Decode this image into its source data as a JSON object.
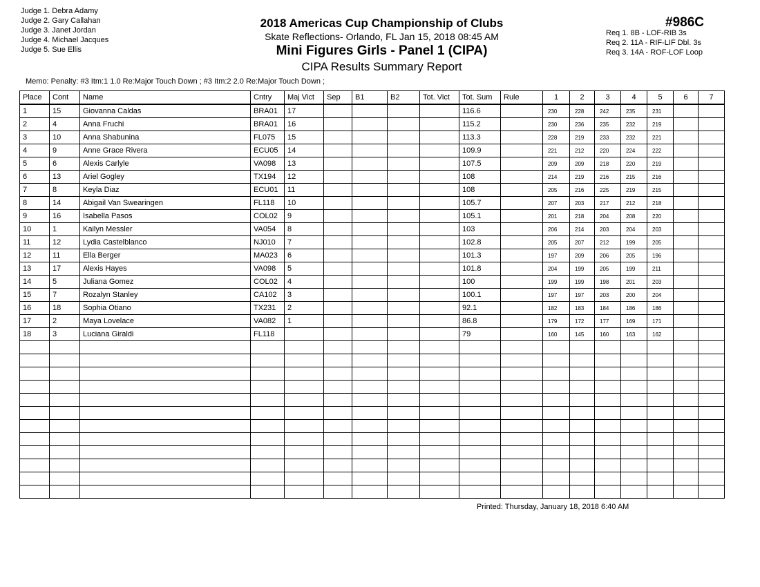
{
  "judges": [
    "Judge  1.  Debra Adamy",
    "Judge  2.  Gary Callahan",
    "Judge  3.  Janet Jordan",
    "Judge  4.  Michael Jacques",
    "Judge  5.  Sue Ellis"
  ],
  "event_code": "#986C",
  "requirements": [
    "Req  1.  8B - LOF-RIB 3s",
    "Req  2.  11A - RIF-LIF Dbl. 3s",
    "Req  3.  14A - ROF-LOF Loop"
  ],
  "title": "2018 Americas Cup Championship of Clubs",
  "venue": "Skate Reflections- Orlando, FL  Jan 15, 2018  08:45 AM",
  "event": "Mini Figures Girls - Panel 1 (CIPA)",
  "report": "CIPA Results Summary Report",
  "memo": "Memo: Penalty: #3 Itm:1 1.0 Re:Major Touch Down ; #3 Itm:2 2.0 Re:Major Touch Down ;",
  "columns": [
    "Place",
    "Cont",
    "Name",
    "Cntry",
    "Maj Vict",
    "Sep",
    "B1",
    "B2",
    "Tot. Vict",
    "Tot. Sum",
    "Rule",
    "1",
    "2",
    "3",
    "4",
    "5",
    "6",
    "7"
  ],
  "rows": [
    [
      "1",
      "15",
      "Giovanna Caldas",
      "BRA01",
      "17",
      "116.6",
      [
        "230",
        "228",
        "242",
        "235",
        "231"
      ]
    ],
    [
      "2",
      "4",
      "Anna Fruchi",
      "BRA01",
      "16",
      "115.2",
      [
        "230",
        "236",
        "235",
        "232",
        "219"
      ]
    ],
    [
      "3",
      "10",
      "Anna Shabunina",
      "FL075",
      "15",
      "113.3",
      [
        "228",
        "219",
        "233",
        "232",
        "221"
      ]
    ],
    [
      "4",
      "9",
      "Anne Grace Rivera",
      "ECU05",
      "14",
      "109.9",
      [
        "221",
        "212",
        "220",
        "224",
        "222"
      ]
    ],
    [
      "5",
      "6",
      "Alexis Carlyle",
      "VA098",
      "13",
      "107.5",
      [
        "209",
        "209",
        "218",
        "220",
        "219"
      ]
    ],
    [
      "6",
      "13",
      "Ariel Gogley",
      "TX194",
      "12",
      "108",
      [
        "214",
        "219",
        "216",
        "215",
        "216"
      ]
    ],
    [
      "7",
      "8",
      "Keyla Diaz",
      "ECU01",
      "11",
      "108",
      [
        "205",
        "216",
        "225",
        "219",
        "215"
      ]
    ],
    [
      "8",
      "14",
      "Abigail Van Swearingen",
      "FL118",
      "10",
      "105.7",
      [
        "207",
        "203",
        "217",
        "212",
        "218"
      ]
    ],
    [
      "9",
      "16",
      "Isabella Pasos",
      "COL02",
      "9",
      "105.1",
      [
        "201",
        "218",
        "204",
        "208",
        "220"
      ]
    ],
    [
      "10",
      "1",
      "Kailyn Messler",
      "VA054",
      "8",
      "103",
      [
        "206",
        "214",
        "203",
        "204",
        "203"
      ]
    ],
    [
      "11",
      "12",
      "Lydia Castelblanco",
      "NJ010",
      "7",
      "102.8",
      [
        "205",
        "207",
        "212",
        "199",
        "205"
      ]
    ],
    [
      "12",
      "11",
      "Ella Berger",
      "MA023",
      "6",
      "101.3",
      [
        "197",
        "209",
        "206",
        "205",
        "196"
      ]
    ],
    [
      "13",
      "17",
      "Alexis Hayes",
      "VA098",
      "5",
      "101.8",
      [
        "204",
        "199",
        "205",
        "199",
        "211"
      ]
    ],
    [
      "14",
      "5",
      "Juliana Gomez",
      "COL02",
      "4",
      "100",
      [
        "199",
        "199",
        "198",
        "201",
        "203"
      ]
    ],
    [
      "15",
      "7",
      "Rozalyn Stanley",
      "CA102",
      "3",
      "100.1",
      [
        "197",
        "197",
        "203",
        "200",
        "204"
      ]
    ],
    [
      "16",
      "18",
      "Sophia Otiano",
      "TX231",
      "2",
      "92.1",
      [
        "182",
        "183",
        "184",
        "186",
        "186"
      ]
    ],
    [
      "17",
      "2",
      "Maya Lovelace",
      "VA082",
      "1",
      "86.8",
      [
        "179",
        "172",
        "177",
        "169",
        "171"
      ]
    ],
    [
      "18",
      "3",
      "Luciana Giraldi",
      "FL118",
      "",
      "79",
      [
        "160",
        "145",
        "160",
        "163",
        "162"
      ]
    ]
  ],
  "printed": "Printed:  Thursday, January 18, 2018  6:40 AM"
}
